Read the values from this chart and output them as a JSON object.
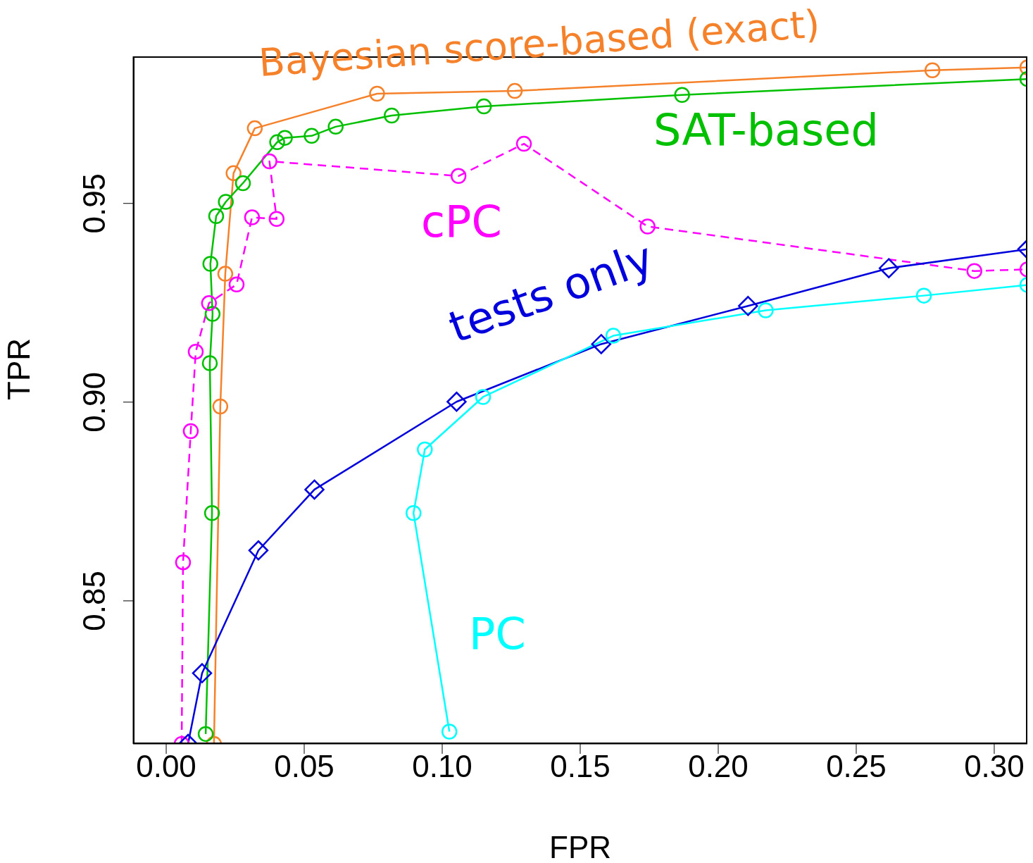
{
  "chart_data": {
    "type": "line",
    "xlabel": "FPR",
    "ylabel": "TPR",
    "xlim": [
      -0.012,
      0.312
    ],
    "ylim": [
      0.814,
      0.987
    ],
    "xticks": [
      {
        "value": 0,
        "label": "0.00"
      },
      {
        "value": 0.05,
        "label": "0.05"
      },
      {
        "value": 0.1,
        "label": "0.10"
      },
      {
        "value": 0.15,
        "label": "0.15"
      },
      {
        "value": 0.2,
        "label": "0.20"
      },
      {
        "value": 0.25,
        "label": "0.25"
      },
      {
        "value": 0.3,
        "label": "0.30"
      }
    ],
    "yticks": [
      0.85,
      {
        "value": 0.9,
        "label": "0.90"
      },
      0.95
    ],
    "series": [
      {
        "name": "Bayesian score-based (exact)",
        "color": "#f5822a",
        "marker": "circle",
        "line_style": "solid",
        "x": [
          0.0173,
          0.0196,
          0.0214,
          0.0244,
          0.0321,
          0.0764,
          0.1263,
          0.2776,
          0.312
        ],
        "values": [
          0.814,
          0.8989,
          0.9323,
          0.9576,
          0.9689,
          0.9776,
          0.9783,
          0.9835,
          0.9842
        ]
      },
      {
        "name": "SAT-based",
        "color": "#00c000",
        "marker": "circle",
        "line_style": "solid",
        "x": [
          0.0143,
          0.0166,
          0.0158,
          0.0168,
          0.016,
          0.0181,
          0.0216,
          0.0278,
          0.0402,
          0.043,
          0.0527,
          0.0614,
          0.0817,
          0.1151,
          0.1869,
          0.312
        ],
        "values": [
          0.8165,
          0.8721,
          0.9098,
          0.9222,
          0.9348,
          0.9468,
          0.9504,
          0.9551,
          0.9654,
          0.9665,
          0.967,
          0.9693,
          0.9721,
          0.9744,
          0.9773,
          0.9813
        ]
      },
      {
        "name": "cPC",
        "color": "#ff00ff",
        "marker": "circle",
        "line_style": "dashed",
        "x": [
          0.0056,
          0.0061,
          0.0089,
          0.0107,
          0.0155,
          0.0255,
          0.0311,
          0.04,
          0.0374,
          0.1059,
          0.1296,
          0.1744,
          0.2928,
          0.312
        ],
        "values": [
          0.814,
          0.8597,
          0.8927,
          0.9127,
          0.9249,
          0.9296,
          0.9465,
          0.9461,
          0.9606,
          0.9569,
          0.965,
          0.9442,
          0.933,
          0.9334
        ]
      },
      {
        "name": "tests only",
        "color": "#0000dd",
        "marker": "diamond",
        "line_style": "solid",
        "x": [
          0.0079,
          0.013,
          0.0334,
          0.0537,
          0.1052,
          0.1576,
          0.2108,
          0.2618,
          0.312
        ],
        "values": [
          0.814,
          0.8318,
          0.8627,
          0.878,
          0.9001,
          0.9146,
          0.9242,
          0.9337,
          0.9385
        ]
      },
      {
        "name": "PC",
        "color": "#00ffff",
        "marker": "circle",
        "line_style": "solid",
        "x": [
          0.1026,
          0.0896,
          0.0937,
          0.1148,
          0.162,
          0.2172,
          0.2745,
          0.312
        ],
        "values": [
          0.8171,
          0.8721,
          0.8881,
          0.9013,
          0.9167,
          0.9231,
          0.9268,
          0.9295
        ]
      }
    ]
  }
}
